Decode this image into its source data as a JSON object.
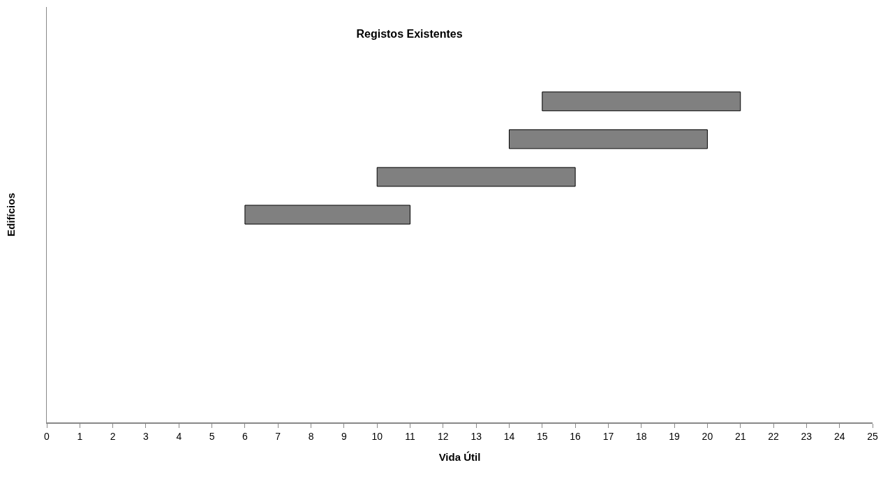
{
  "chart_data": {
    "type": "bar",
    "orientation": "horizontal",
    "title": "Registos Existentes",
    "xlabel": "Vida Útil",
    "ylabel": "Edifícios",
    "categories": [
      null,
      null,
      null,
      null,
      null,
      null,
      null,
      null,
      null,
      null,
      null
    ],
    "values": [
      null,
      null,
      6,
      6,
      6,
      5,
      null,
      null,
      null,
      null,
      null
    ],
    "base": [
      null,
      null,
      15,
      14,
      10,
      6,
      null,
      null,
      null,
      null,
      null
    ],
    "color": "#808080",
    "xlim": [
      0,
      25
    ],
    "xticks": [
      0,
      1,
      2,
      3,
      4,
      5,
      6,
      7,
      8,
      9,
      10,
      11,
      12,
      13,
      14,
      15,
      16,
      17,
      18,
      19,
      20,
      21,
      22,
      23,
      24,
      25
    ],
    "tick_labels": "x"
  }
}
